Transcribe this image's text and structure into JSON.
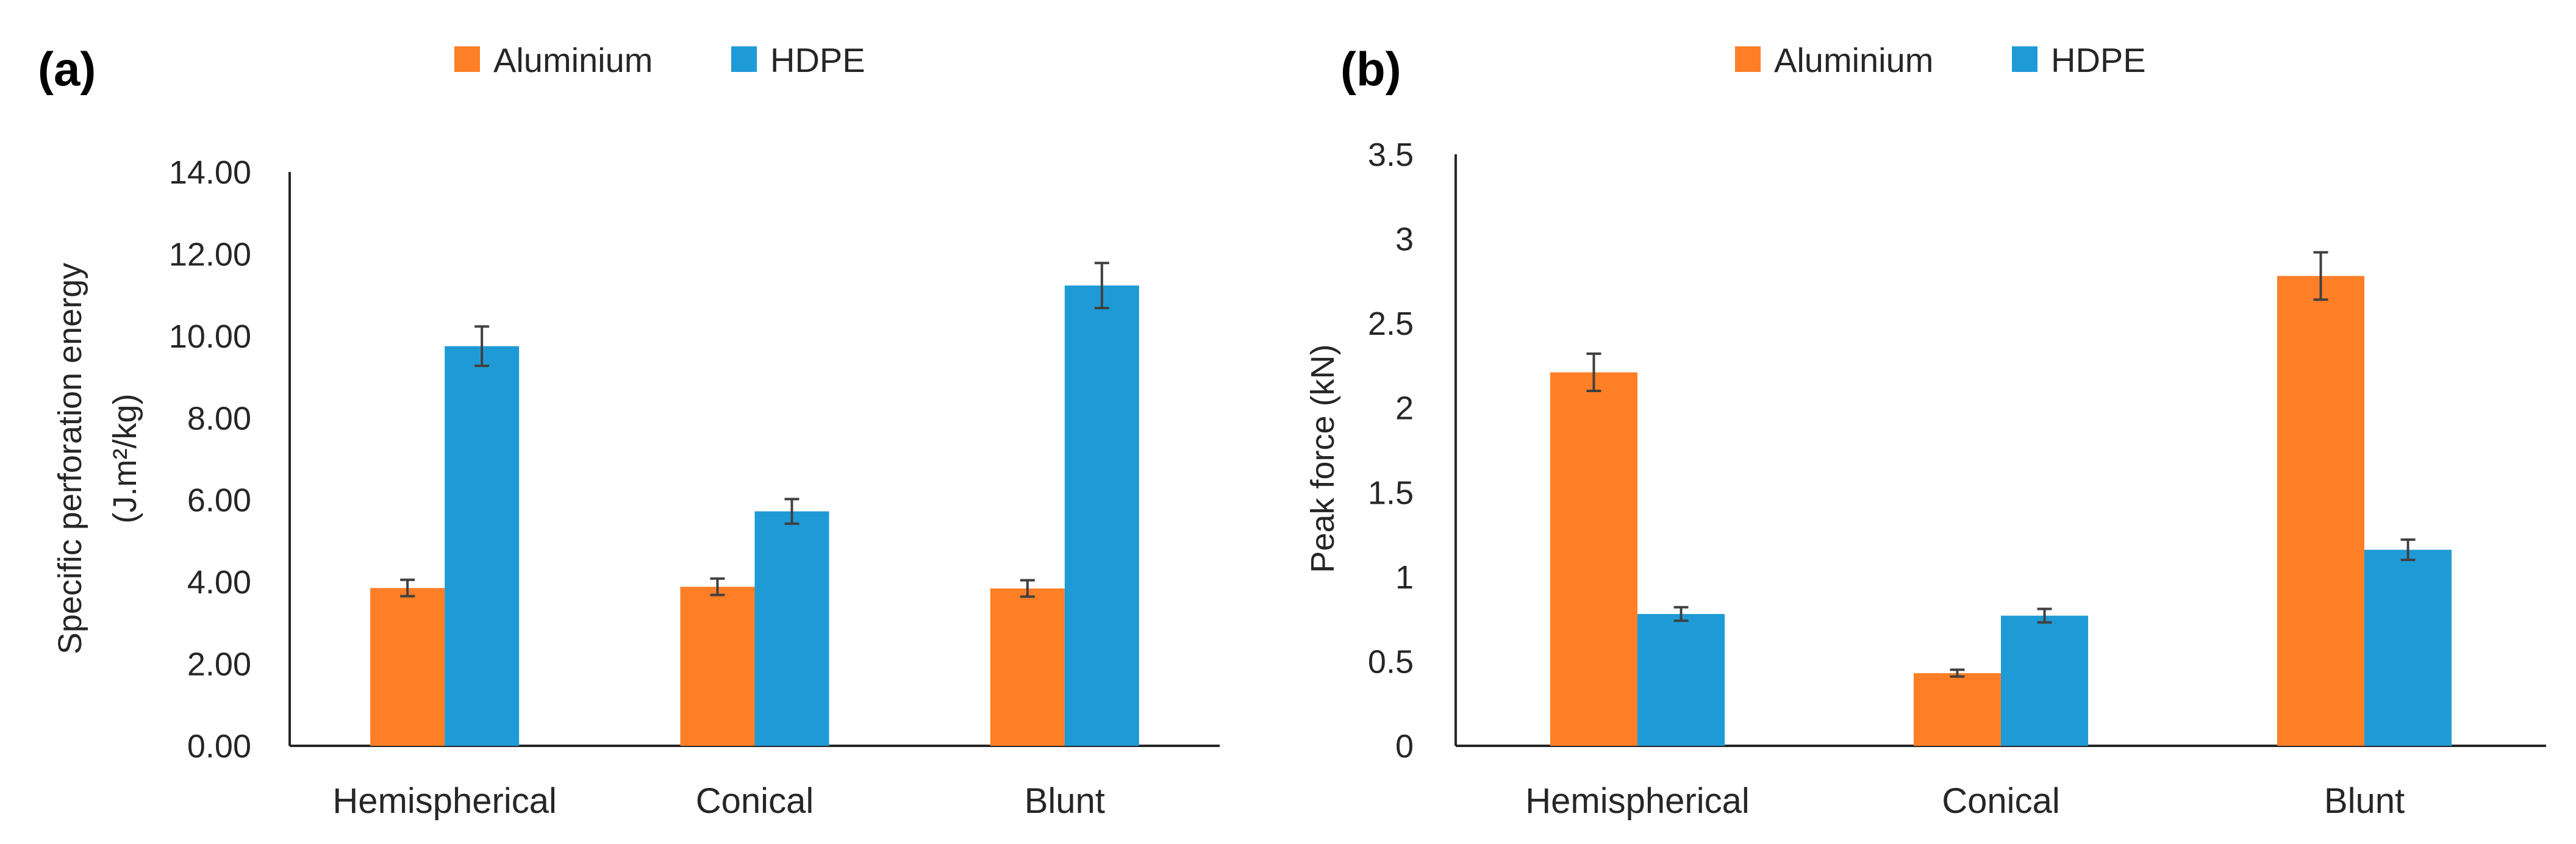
{
  "colors": {
    "aluminium": "#FF7F27",
    "hdpe": "#1E9BD7"
  },
  "chart_data": [
    {
      "type": "bar",
      "panel_label": "(a)",
      "categories": [
        "Hemispherical",
        "Conical",
        "Blunt"
      ],
      "series": [
        {
          "name": "Aluminium",
          "values": [
            3.85,
            3.88,
            3.84
          ],
          "errors": [
            0.2,
            0.2,
            0.2
          ]
        },
        {
          "name": "HDPE",
          "values": [
            9.75,
            5.72,
            11.23
          ],
          "errors": [
            0.48,
            0.3,
            0.55
          ]
        }
      ],
      "ylabel_line1": "Specific perforation energy",
      "ylabel_line2": "(J.m²/kg)",
      "ylim": [
        0,
        14
      ],
      "yticks": [
        "0.00",
        "2.00",
        "4.00",
        "6.00",
        "8.00",
        "10.00",
        "12.00",
        "14.00"
      ],
      "legend_position": "top-center"
    },
    {
      "type": "bar",
      "panel_label": "(b)",
      "categories": [
        "Hemispherical",
        "Conical",
        "Blunt"
      ],
      "series": [
        {
          "name": "Aluminium",
          "values": [
            2.21,
            0.43,
            2.78
          ],
          "errors": [
            0.11,
            0.02,
            0.14
          ]
        },
        {
          "name": "HDPE",
          "values": [
            0.78,
            0.77,
            1.16
          ],
          "errors": [
            0.04,
            0.04,
            0.06
          ]
        }
      ],
      "ylabel": "Peak force (kN)",
      "ylim": [
        0,
        3.5
      ],
      "yticks": [
        "0",
        "0.5",
        "1",
        "1.5",
        "2",
        "2.5",
        "3",
        "3.5"
      ],
      "legend_position": "top-center"
    }
  ]
}
